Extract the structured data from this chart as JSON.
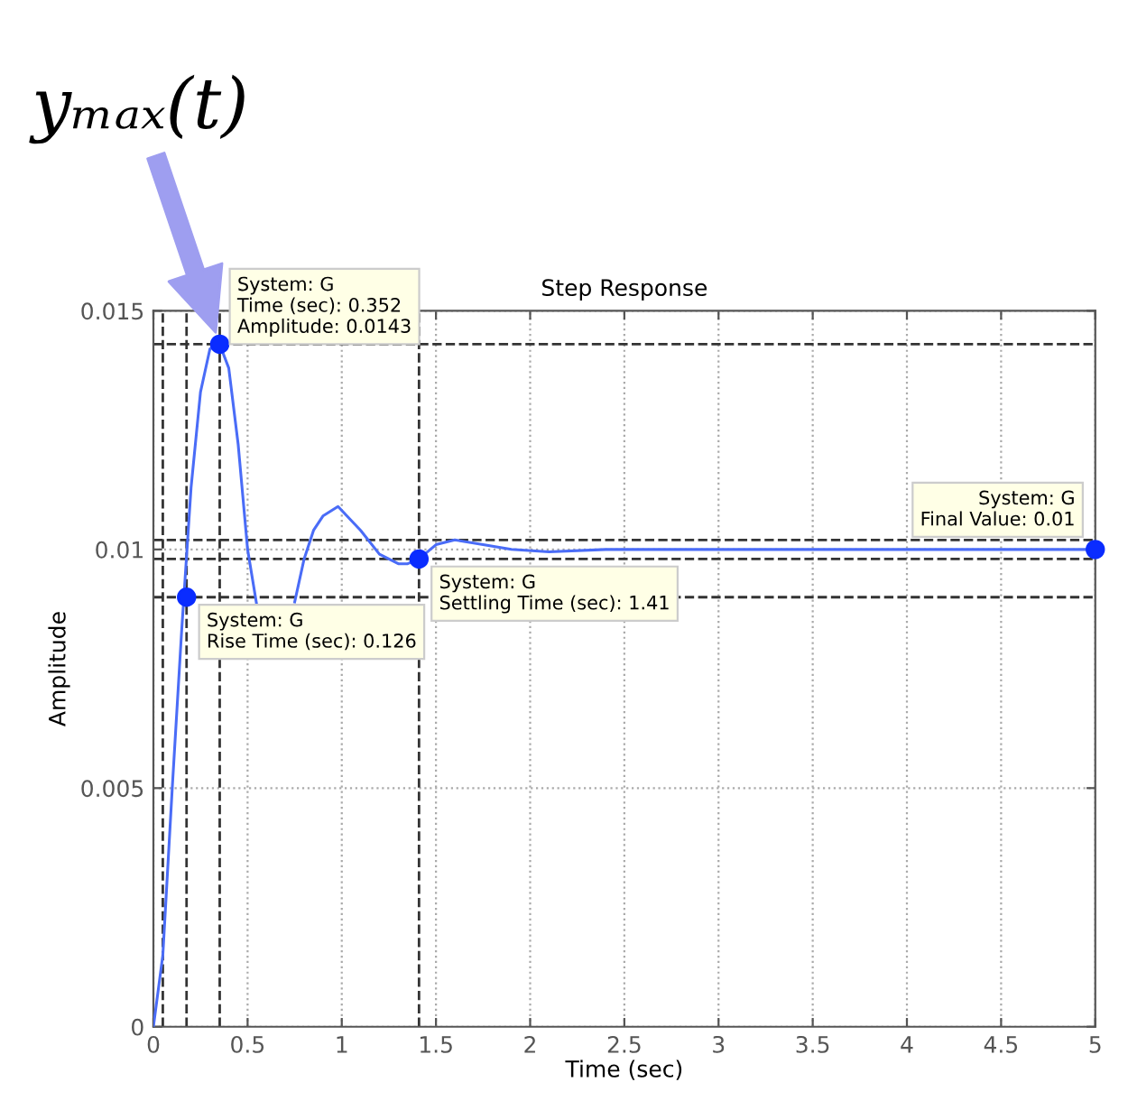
{
  "chart_data": {
    "type": "line",
    "title": "Step Response",
    "xlabel": "Time (sec)",
    "ylabel": "Amplitude",
    "xlim": [
      0,
      5
    ],
    "ylim": [
      0,
      0.015
    ],
    "xticks": [
      0,
      0.5,
      1,
      1.5,
      2,
      2.5,
      3,
      3.5,
      4,
      4.5,
      5
    ],
    "yticks": [
      0,
      0.005,
      0.01,
      0.015
    ],
    "grid": true,
    "series": [
      {
        "color": "#4a6cf7",
        "x": [
          0,
          0.05,
          0.1,
          0.15,
          0.2,
          0.25,
          0.3,
          0.352,
          0.4,
          0.45,
          0.5,
          0.55,
          0.6,
          0.65,
          0.7,
          0.75,
          0.8,
          0.85,
          0.9,
          0.98,
          1.1,
          1.2,
          1.3,
          1.35,
          1.41,
          1.5,
          1.6,
          1.75,
          1.9,
          2.1,
          2.4,
          2.8,
          5
        ],
        "values": [
          0,
          0.0015,
          0.005,
          0.0083,
          0.0113,
          0.0133,
          0.0142,
          0.0143,
          0.0138,
          0.0122,
          0.01,
          0.0088,
          null,
          null,
          null,
          0.0089,
          0.0098,
          0.0104,
          0.0107,
          0.0109,
          0.0104,
          0.0099,
          0.0097,
          0.0097,
          0.0098,
          0.0101,
          0.0102,
          0.0101,
          0.01,
          0.00995,
          0.01,
          0.01,
          0.01
        ]
      },
      {
        "type": "scatter",
        "color": "#0a2cff",
        "marker": "circle",
        "x": [
          0.176,
          0.352,
          1.41,
          5
        ],
        "values": [
          0.009,
          0.0143,
          0.0098,
          0.01
        ]
      }
    ],
    "ref_lines": [
      {
        "axis": "y",
        "value": 0.0143,
        "color": "#333333",
        "line_style": "dashed"
      },
      {
        "axis": "y",
        "value": 0.0102,
        "color": "#333333",
        "line_style": "dashed"
      },
      {
        "axis": "y",
        "value": 0.0098,
        "color": "#333333",
        "line_style": "dashed"
      },
      {
        "axis": "y",
        "value": 0.009,
        "color": "#333333",
        "line_style": "dashed"
      },
      {
        "axis": "x",
        "value": 0.05,
        "color": "#333333",
        "line_style": "dashed"
      },
      {
        "axis": "x",
        "value": 0.176,
        "color": "#333333",
        "line_style": "dashed"
      },
      {
        "axis": "x",
        "value": 0.352,
        "color": "#333333",
        "line_style": "dashed"
      },
      {
        "axis": "x",
        "value": 1.41,
        "color": "#333333",
        "line_style": "dashed"
      }
    ],
    "annotations": [
      {
        "text": "yₘₐₓ(t)",
        "x": 0.352,
        "y": 0.0143
      },
      {
        "text": "System: G\nTime (sec): 0.352\nAmplitude: 0.0143",
        "x": 0.352,
        "y": 0.0143
      },
      {
        "text": "System: G\nRise Time (sec): 0.126",
        "x": 0.176,
        "y": 0.009
      },
      {
        "text": "System: G\nSettling Time (sec): 1.41",
        "x": 1.41,
        "y": 0.0098
      },
      {
        "text": "System: G\nFinal Value: 0.01",
        "x": 5,
        "y": 0.01
      }
    ]
  }
}
